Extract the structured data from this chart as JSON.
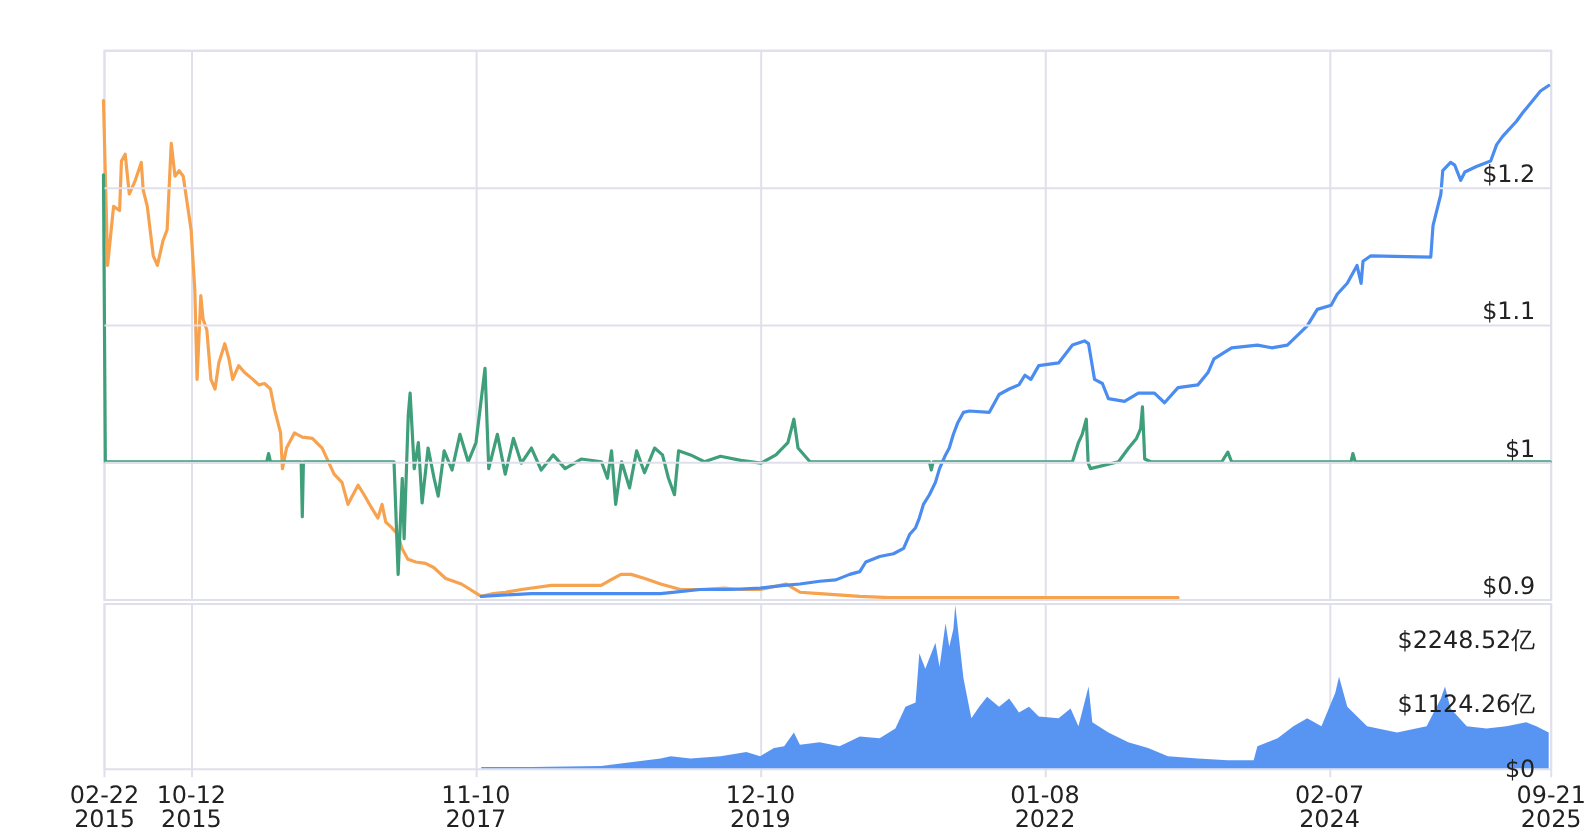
{
  "chart_data": [
    {
      "type": "line",
      "xlim": [
        "2015-02-22",
        "2025-09-21"
      ],
      "ylim": [
        0.9,
        1.3
      ],
      "grid": true,
      "tick_labels": "y",
      "xticks": [
        {
          "value": "2015-02-22",
          "label": null
        },
        {
          "value": "2015-10-12",
          "label": null
        },
        {
          "value": "2017-11-10",
          "label": null
        },
        {
          "value": "2019-12-10",
          "label": null
        },
        {
          "value": "2022-01-08",
          "label": null
        },
        {
          "value": "2024-02-07",
          "label": null
        },
        {
          "value": "2025-09-21",
          "label": null
        }
      ],
      "yticks": [
        {
          "value": 0.9,
          "label": "$0.9"
        },
        {
          "value": 1,
          "label": "$1"
        },
        {
          "value": 1.1,
          "label": "$1.1"
        },
        {
          "value": 1.2,
          "label": "$1.2"
        },
        {
          "value": 1.3,
          "label": null
        }
      ],
      "series": [
        {
          "color": "#f7a24e",
          "x": [
            "2015-02-22",
            "2015-03-05",
            "2015-03-21",
            "2015-04-06",
            "2015-04-11",
            "2015-04-21",
            "2015-05-02",
            "2015-05-18",
            "2015-06-03",
            "2015-06-08",
            "2015-06-19",
            "2015-07-05",
            "2015-07-16",
            "2015-07-31",
            "2015-08-11",
            "2015-08-22",
            "2015-09-01",
            "2015-09-12",
            "2015-09-23",
            "2015-10-14",
            "2015-10-24",
            "2015-10-30",
            "2015-11-09",
            "2015-11-15",
            "2015-11-25",
            "2015-12-06",
            "2015-12-17",
            "2015-12-27",
            "2016-01-12",
            "2016-01-23",
            "2016-02-02",
            "2016-02-18",
            "2016-03-05",
            "2016-03-27",
            "2016-04-12",
            "2016-04-27",
            "2016-05-13",
            "2016-05-24",
            "2016-06-09",
            "2016-06-14",
            "2016-06-25",
            "2016-07-16",
            "2016-08-06",
            "2016-09-02",
            "2016-09-28",
            "2016-10-30",
            "2016-11-20",
            "2016-12-06",
            "2017-01-02",
            "2017-01-18",
            "2017-02-08",
            "2017-02-24",
            "2017-03-07",
            "2017-03-17",
            "2017-04-02",
            "2017-04-18",
            "2017-04-29",
            "2017-05-15",
            "2017-06-05",
            "2017-07-01",
            "2017-07-23",
            "2017-08-24",
            "2017-10-05",
            "2017-11-27",
            "2017-12-29",
            "2018-01-31",
            "2018-03-14",
            "2018-06-02",
            "2018-08-21",
            "2018-10-13",
            "2018-11-08",
            "2018-12-05",
            "2019-01-01",
            "2019-02-07",
            "2019-03-21",
            "2019-05-13",
            "2019-07-05",
            "2019-09-07",
            "2019-10-20",
            "2019-12-12",
            "2020-02-19",
            "2020-03-27",
            "2020-05-19",
            "2020-09-03",
            "2020-11-22",
            "2023-01-01"
          ],
          "values": [
            1.263,
            1.143,
            1.186,
            1.183,
            1.219,
            1.224,
            1.195,
            1.205,
            1.218,
            1.198,
            1.186,
            1.15,
            1.143,
            1.161,
            1.169,
            1.232,
            1.208,
            1.212,
            1.208,
            1.169,
            1.125,
            1.06,
            1.121,
            1.104,
            1.096,
            1.06,
            1.053,
            1.072,
            1.086,
            1.075,
            1.06,
            1.07,
            1.065,
            1.06,
            1.056,
            1.057,
            1.053,
            1.038,
            1.021,
            0.995,
            1.01,
            1.021,
            1.018,
            1.017,
            1.01,
            0.991,
            0.985,
            0.969,
            0.983,
            0.976,
            0.966,
            0.959,
            0.969,
            0.956,
            0.952,
            0.947,
            0.937,
            0.929,
            0.927,
            0.926,
            0.923,
            0.915,
            0.911,
            0.902,
            0.904,
            0.905,
            0.907,
            0.91,
            0.91,
            0.91,
            0.914,
            0.918,
            0.918,
            0.915,
            0.911,
            0.907,
            0.907,
            0.908,
            0.907,
            0.907,
            0.911,
            0.905,
            0.904,
            0.902,
            0.901,
            0.901
          ]
        },
        {
          "color": "#3f9f7a",
          "x": [
            "2015-02-22",
            "2015-02-27",
            "2016-05-03",
            "2016-05-08",
            "2016-05-13",
            "2016-08-03",
            "2016-08-06",
            "2016-08-09",
            "2017-04-08",
            "2017-04-19",
            "2017-04-30",
            "2017-05-05",
            "2017-05-16",
            "2017-05-21",
            "2017-06-01",
            "2017-06-12",
            "2017-06-22",
            "2017-07-08",
            "2017-07-24",
            "2017-08-04",
            "2017-08-20",
            "2017-09-10",
            "2017-10-01",
            "2017-10-23",
            "2017-11-13",
            "2017-12-07",
            "2017-12-17",
            "2018-01-09",
            "2018-01-30",
            "2018-02-21",
            "2018-03-14",
            "2018-04-10",
            "2018-05-06",
            "2018-06-07",
            "2018-07-09",
            "2018-08-21",
            "2018-10-14",
            "2018-10-30",
            "2018-11-10",
            "2018-11-21",
            "2018-12-07",
            "2018-12-28",
            "2019-01-16",
            "2019-02-06",
            "2019-03-05",
            "2019-03-26",
            "2019-04-11",
            "2019-04-27",
            "2019-05-08",
            "2019-06-09",
            "2019-07-16",
            "2019-08-28",
            "2019-10-21",
            "2019-12-14",
            "2020-01-23",
            "2020-02-24",
            "2020-03-11",
            "2020-03-22",
            "2020-04-23",
            "2021-03-08",
            "2021-03-13",
            "2021-03-18",
            "2022-03-25",
            "2022-04-10",
            "2022-04-20",
            "2022-05-01",
            "2022-05-06",
            "2022-05-12",
            "2022-07-26",
            "2022-08-22",
            "2022-09-12",
            "2022-09-23",
            "2022-09-28",
            "2022-10-04",
            "2022-10-20",
            "2023-04-28",
            "2023-05-14",
            "2023-05-24",
            "2024-04-07",
            "2024-04-12",
            "2024-04-18",
            "2025-09-21"
          ],
          "values": [
            1.209,
            1.0,
            1.0,
            1.006,
            1.0,
            1.0,
            0.96,
            1.0,
            1.0,
            0.918,
            0.988,
            0.944,
            1.034,
            1.05,
            0.995,
            1.014,
            0.97,
            1.01,
            0.988,
            0.975,
            1.008,
            0.994,
            1.02,
            1.0,
            1.014,
            1.068,
            0.995,
            1.02,
            0.991,
            1.017,
            0.999,
            1.01,
            0.994,
            1.005,
            0.995,
            1.002,
            1.0,
            0.988,
            1.008,
            0.969,
            1.0,
            0.981,
            1.008,
            0.992,
            1.01,
            1.005,
            0.988,
            0.976,
            1.008,
            1.005,
            1.0,
            1.004,
            1.001,
            0.999,
            1.005,
            1.014,
            1.031,
            1.01,
            1.0,
            1.0,
            0.994,
            1.0,
            1.0,
            1.014,
            1.02,
            1.031,
            0.999,
            0.995,
            1.0,
            1.01,
            1.017,
            1.024,
            1.04,
            1.002,
            1.0,
            1.0,
            1.007,
            1.0,
            1.0,
            1.006,
            1.0,
            1.0
          ]
        },
        {
          "color": "#4a8cf0",
          "x": [
            "2017-11-27",
            "2018-04-10",
            "2018-10-13",
            "2019-03-21",
            "2019-07-05",
            "2019-09-23",
            "2019-12-12",
            "2020-02-14",
            "2020-03-27",
            "2020-05-19",
            "2020-07-01",
            "2020-08-07",
            "2020-09-03",
            "2020-09-19",
            "2020-10-26",
            "2020-12-02",
            "2020-12-29",
            "2021-01-14",
            "2021-01-30",
            "2021-02-09",
            "2021-02-20",
            "2021-03-08",
            "2021-03-24",
            "2021-04-04",
            "2021-04-20",
            "2021-04-30",
            "2021-05-11",
            "2021-05-22",
            "2021-06-07",
            "2021-06-23",
            "2021-08-15",
            "2021-09-10",
            "2021-10-07",
            "2021-11-02",
            "2021-11-18",
            "2021-12-04",
            "2021-12-25",
            "2022-02-16",
            "2022-03-25",
            "2022-04-26",
            "2022-05-07",
            "2022-05-23",
            "2022-06-13",
            "2022-06-29",
            "2022-08-11",
            "2022-09-17",
            "2022-10-30",
            "2022-11-26",
            "2023-01-01",
            "2023-02-23",
            "2023-03-22",
            "2023-04-07",
            "2023-05-24",
            "2023-08-01",
            "2023-09-08",
            "2023-10-20",
            "2023-11-16",
            "2023-12-12",
            "2024-01-08",
            "2024-02-14",
            "2024-03-01",
            "2024-03-28",
            "2024-04-23",
            "2024-05-04",
            "2024-05-09",
            "2024-05-30",
            "2024-11-06",
            "2024-11-12",
            "2024-12-03",
            "2024-12-08",
            "2024-12-29",
            "2025-01-09",
            "2025-01-25",
            "2025-02-05",
            "2025-03-08",
            "2025-04-15",
            "2025-05-01",
            "2025-05-17",
            "2025-06-23",
            "2025-07-09",
            "2025-08-05",
            "2025-08-26",
            "2025-09-17"
          ],
          "values": [
            0.902,
            0.904,
            0.904,
            0.904,
            0.907,
            0.907,
            0.908,
            0.91,
            0.911,
            0.913,
            0.914,
            0.918,
            0.92,
            0.927,
            0.931,
            0.933,
            0.937,
            0.947,
            0.952,
            0.959,
            0.969,
            0.976,
            0.985,
            0.995,
            1.005,
            1.01,
            1.02,
            1.028,
            1.036,
            1.037,
            1.036,
            1.049,
            1.053,
            1.056,
            1.063,
            1.06,
            1.07,
            1.072,
            1.085,
            1.088,
            1.086,
            1.06,
            1.057,
            1.046,
            1.044,
            1.05,
            1.05,
            1.043,
            1.054,
            1.056,
            1.065,
            1.075,
            1.083,
            1.085,
            1.083,
            1.085,
            1.092,
            1.099,
            1.111,
            1.114,
            1.122,
            1.13,
            1.143,
            1.13,
            1.146,
            1.15,
            1.149,
            1.172,
            1.195,
            1.212,
            1.218,
            1.216,
            1.205,
            1.211,
            1.215,
            1.219,
            1.231,
            1.237,
            1.248,
            1.254,
            1.263,
            1.27,
            1.274
          ]
        }
      ]
    },
    {
      "type": "area",
      "xlim": [
        "2015-02-22",
        "2025-09-21"
      ],
      "ylim": [
        0,
        2870
      ],
      "grid": "x",
      "xticks": [
        {
          "value": "2015-02-22",
          "label": "02-22\n2015"
        },
        {
          "value": "2015-10-12",
          "label": "10-12\n2015"
        },
        {
          "value": "2017-11-10",
          "label": "11-10\n2017"
        },
        {
          "value": "2019-12-10",
          "label": "12-10\n2019"
        },
        {
          "value": "2022-01-08",
          "label": "01-08\n2022"
        },
        {
          "value": "2024-02-07",
          "label": "02-07\n2024"
        },
        {
          "value": "2025-09-21",
          "label": "09-21\n2025"
        }
      ],
      "yticks": [
        {
          "value": 0,
          "label": "$0"
        },
        {
          "value": 1124.26,
          "label": "$1124.26亿"
        },
        {
          "value": 2248.52,
          "label": "$2248.52亿"
        }
      ],
      "series": [
        {
          "color": "#4f8ff2",
          "x": [
            "2017-11-27",
            "2018-04-10",
            "2018-10-13",
            "2019-03-21",
            "2019-04-17",
            "2019-06-09",
            "2019-08-28",
            "2019-11-05",
            "2019-12-12",
            "2020-01-18",
            "2020-02-14",
            "2020-03-11",
            "2020-03-27",
            "2020-05-19",
            "2020-07-11",
            "2020-09-03",
            "2020-10-26",
            "2020-12-07",
            "2021-01-03",
            "2021-01-30",
            "2021-02-09",
            "2021-02-25",
            "2021-03-24",
            "2021-04-04",
            "2021-04-20",
            "2021-04-30",
            "2021-05-11",
            "2021-05-16",
            "2021-06-07",
            "2021-06-28",
            "2021-07-19",
            "2021-08-09",
            "2021-09-10",
            "2021-10-07",
            "2021-11-02",
            "2021-11-29",
            "2021-12-25",
            "2022-02-16",
            "2022-03-20",
            "2022-04-10",
            "2022-05-07",
            "2022-05-17",
            "2022-06-29",
            "2022-08-21",
            "2022-10-13",
            "2022-12-05",
            "2023-02-23",
            "2023-05-14",
            "2023-07-22",
            "2023-08-01",
            "2023-09-24",
            "2023-11-05",
            "2023-12-12",
            "2024-01-19",
            "2024-02-25",
            "2024-03-06",
            "2024-03-28",
            "2024-05-20",
            "2024-08-08",
            "2024-10-26",
            "2024-12-03",
            "2024-12-14",
            "2024-12-29",
            "2025-02-10",
            "2025-04-04",
            "2025-05-27",
            "2025-07-19",
            "2025-08-15",
            "2025-09-17"
          ],
          "values": [
            20,
            20,
            40,
            170,
            210,
            170,
            210,
            280,
            210,
            350,
            380,
            620,
            410,
            450,
            380,
            550,
            520,
            690,
            1070,
            1140,
            2000,
            1730,
            2180,
            1760,
            2520,
            2110,
            2420,
            2830,
            1560,
            870,
            1070,
            1240,
            1070,
            1210,
            970,
            1070,
            900,
            870,
            1040,
            730,
            1420,
            800,
            620,
            450,
            350,
            210,
            170,
            140,
            140,
            380,
            520,
            730,
            870,
            730,
            1310,
            1590,
            1070,
            730,
            620,
            730,
            1210,
            1420,
            1040,
            730,
            690,
            730,
            800,
            730,
            620
          ]
        }
      ]
    }
  ]
}
